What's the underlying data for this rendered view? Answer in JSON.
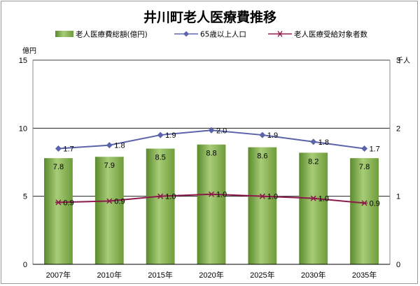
{
  "chart_data": {
    "type": "bar",
    "title": "井川町老人医療費推移",
    "categories": [
      "2007年",
      "2010年",
      "2015年",
      "2020年",
      "2025年",
      "2030年",
      "2035年"
    ],
    "left_axis": {
      "unit": "億円",
      "ylim": [
        0,
        15
      ],
      "ticks": [
        0,
        5,
        10,
        15
      ]
    },
    "right_axis": {
      "unit": "千人",
      "ylim": [
        0,
        3
      ],
      "ticks": [
        0,
        1,
        2,
        3
      ]
    },
    "grid": true,
    "legend_position": "top",
    "series": [
      {
        "name": "老人医療費総額(億円)",
        "type": "bar",
        "axis": "left",
        "color": "#8db559",
        "values": [
          7.8,
          7.9,
          8.5,
          8.8,
          8.6,
          8.2,
          7.8
        ],
        "labels": [
          "7.8",
          "7.9",
          "8.5",
          "8.8",
          "8.6",
          "8.2",
          "7.8"
        ]
      },
      {
        "name": "65歳以上人口",
        "type": "line",
        "axis": "right",
        "color": "#5b63ab",
        "marker": "diamond",
        "values": [
          1.7,
          1.75,
          1.9,
          1.97,
          1.9,
          1.8,
          1.7
        ],
        "labels": [
          "1.7",
          "1.8",
          "1.9",
          "2.0",
          "1.9",
          "1.8",
          "1.7"
        ]
      },
      {
        "name": "老人医療受給対象者数",
        "type": "line",
        "axis": "right",
        "color": "#8b1a4a",
        "marker": "star",
        "values": [
          0.91,
          0.93,
          1.0,
          1.03,
          1.0,
          0.97,
          0.9
        ],
        "labels": [
          "0.9",
          "0.9",
          "1.0",
          "1.0",
          "1.0",
          "1.0",
          "0.9"
        ]
      }
    ]
  }
}
